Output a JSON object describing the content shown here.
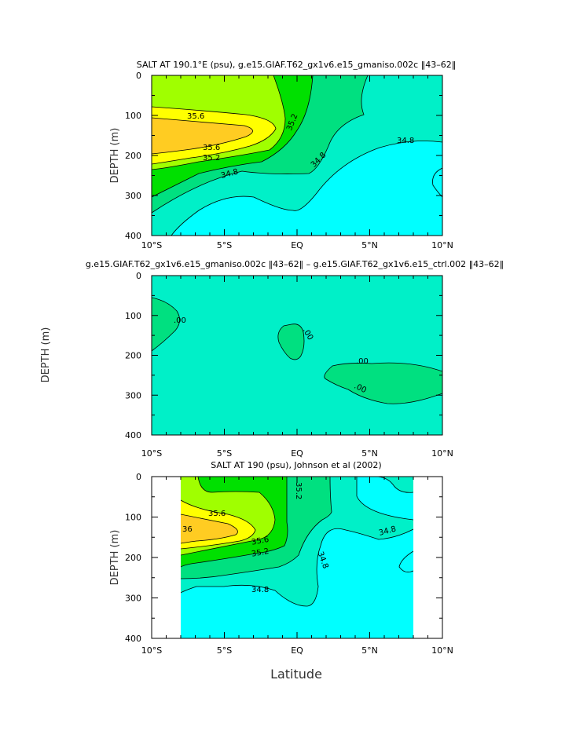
{
  "chart_data": [
    {
      "type": "contour",
      "title": "SALT AT 190.1°E (psu), g.e15.GIAF.T62_gx1v6.e15_gmaniso.002c ‖43–62‖",
      "ylabel": "DEPTH (m)",
      "xlabel": "",
      "x_ticks": [
        "10°S",
        "5°S",
        "EQ",
        "5°N",
        "10°N"
      ],
      "y_ticks": [
        "0",
        "100",
        "200",
        "300",
        "400"
      ],
      "xlim": [
        -10,
        10
      ],
      "ylim": [
        400,
        0
      ],
      "colors": {
        "lt34.8": "#00ffff",
        "34.8_35.0": "#00f0c8",
        "35.0_35.2": "#00e080",
        "35.2_35.4": "#00e000",
        "35.4_35.6": "#a0ff00",
        "35.6_35.8": "#ffff00",
        "gt35.8": "#ffcc22"
      },
      "contour_labels": [
        "35.6",
        "35.2",
        "34.8",
        "35.6",
        "35.2",
        "34.8",
        "34.8"
      ]
    },
    {
      "type": "contour",
      "title": "g.e15.GIAF.T62_gx1v6.e15_gmaniso.002c ‖43–62‖ – g.e15.GIAF.T62_gx1v6.e15_ctrl.002 ‖43–62‖",
      "ylabel": "DEPTH (m)",
      "xlabel": "",
      "x_ticks": [
        "10°S",
        "5°S",
        "EQ",
        "5°N",
        "10°N"
      ],
      "y_ticks": [
        "0",
        "100",
        "200",
        "300",
        "400"
      ],
      "xlim": [
        -10,
        10
      ],
      "ylim": [
        400,
        0
      ],
      "colors": {
        "background": "#00f0c8",
        "positive": "#00e080"
      },
      "contour_labels": [
        ".00",
        ".00",
        ".00",
        ".00"
      ]
    },
    {
      "type": "contour",
      "title": "SALT AT 190 (psu), Johnson et al (2002)",
      "ylabel": "DEPTH (m)",
      "xlabel": "Latitude",
      "x_ticks": [
        "10°S",
        "5°S",
        "EQ",
        "5°N",
        "10°N"
      ],
      "y_ticks": [
        "0",
        "100",
        "200",
        "300",
        "400"
      ],
      "xlim": [
        -10,
        10
      ],
      "ylim": [
        400,
        0
      ],
      "data_extent_lat": [
        -8,
        8
      ],
      "colors": {
        "lt34.8": "#00ffff",
        "34.8_35.0": "#00f0c8",
        "35.0_35.2": "#00e080",
        "35.2_35.4": "#00e000",
        "35.4_35.6": "#a0ff00",
        "35.6_35.8": "#ffff00",
        "gt35.8": "#ffcc22"
      },
      "contour_labels": [
        "35.2",
        "35.6",
        "36",
        "35.6",
        "35.2",
        "34.8",
        "34.8",
        "34.8"
      ]
    }
  ]
}
